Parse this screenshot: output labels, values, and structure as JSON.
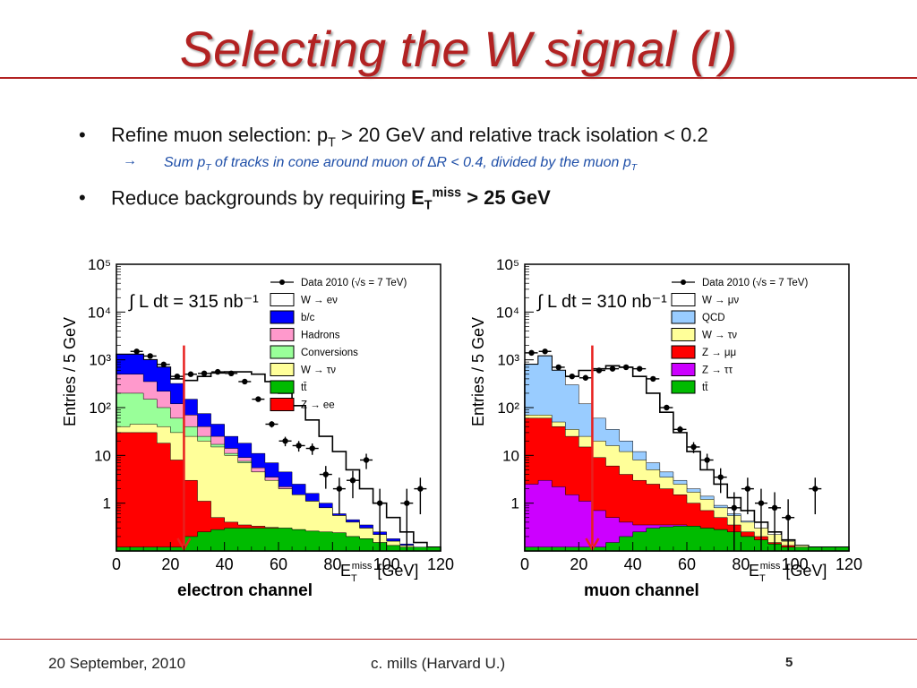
{
  "slide": {
    "title": "Selecting the W signal (I)",
    "bullet1": {
      "pre": "Refine muon selection: p",
      "sub": "T",
      "post": " > 20 GeV and relative track isolation < 0.2"
    },
    "subbullet": {
      "arrow": "→",
      "pre": "Sum p",
      "sub": "T",
      "mid": " of tracks in cone around muon of ",
      "delta": "∆",
      "post": "R < 0.4, divided by the muon p",
      "sub2": "T"
    },
    "bullet2": {
      "pre": "Reduce backgrounds by requiring ",
      "bold_e": "E",
      "bold_sub": "T",
      "bold_sup": "miss",
      "bold_post": " > 25 GeV"
    },
    "caption_electron": "electron channel",
    "caption_muon": "muon channel",
    "footer": {
      "date": "20 September, 2010",
      "author": "c. mills (Harvard U.)",
      "page": "5"
    }
  },
  "colors": {
    "title": "#b22222",
    "cut_line": "#e8201e",
    "blue": "#0000ff",
    "pink": "#ff99cc",
    "green_conv": "#99ff99",
    "yellow": "#ffff99",
    "ttbar": "#00bb00",
    "red": "#ff0000",
    "qcd": "#99ccff",
    "purple": "#cc00ff"
  },
  "chart_data": [
    {
      "type": "histogram",
      "ylabel": "Entries / 5 GeV",
      "xlabel": "E_T^miss [GeV]",
      "xlabel_parts": {
        "e": "E",
        "sub": "T",
        "sup": "miss",
        "unit": "[GeV]"
      },
      "xlim": [
        0,
        120
      ],
      "ylim": [
        0.1,
        100000
      ],
      "yscale": "log",
      "xticks": [
        "0",
        "20",
        "40",
        "60",
        "80",
        "100",
        "120"
      ],
      "yticks": [
        {
          "v": 1,
          "t": "1"
        },
        {
          "v": 10,
          "t": "10"
        },
        {
          "v": 100,
          "t": "10²"
        },
        {
          "v": 1000,
          "t": "10³"
        },
        {
          "v": 10000,
          "t": "10⁴"
        },
        {
          "v": 100000,
          "t": "10⁵"
        }
      ],
      "lumi_label": "∫ L dt = 315 nb⁻¹",
      "cut_at": 25,
      "legend": [
        {
          "label": "Data 2010 (√s = 7 TeV)",
          "style": "data"
        },
        {
          "label": "W → eν",
          "color": "#ffffff"
        },
        {
          "label": "b/c",
          "color": "#0000ff"
        },
        {
          "label": "Hadrons",
          "color": "#ff99cc"
        },
        {
          "label": "Conversions",
          "color": "#99ff99"
        },
        {
          "label": "W → τν",
          "color": "#ffff99"
        },
        {
          "label": "tt̄",
          "color": "#00bb00"
        },
        {
          "label": "Z → ee",
          "color": "#ff0000"
        }
      ],
      "stack_order": [
        "tt̄",
        "Z → ee",
        "W → τν",
        "Conversions",
        "Hadrons",
        "b/c",
        "W → eν"
      ],
      "stack_colors": [
        "#00bb00",
        "#ff0000",
        "#ffff99",
        "#99ff99",
        "#ff99cc",
        "#0000ff",
        "#ffffff"
      ],
      "cumulative": [
        [
          0.12,
          0.12,
          0.12,
          0.12,
          0.12,
          0.2,
          0.25,
          0.28,
          0.3,
          0.3,
          0.3,
          0.3,
          0.3,
          0.28,
          0.26,
          0.25,
          0.24,
          0.2,
          0.18,
          0.15,
          0.13,
          0.12,
          0.12,
          0.12
        ],
        [
          30,
          30,
          30,
          18,
          8,
          3,
          1.1,
          0.5,
          0.4,
          0.35,
          0.33,
          0.31,
          0.3,
          0.28,
          0.26,
          0.25,
          0.24,
          0.2,
          0.18,
          0.15,
          0.13,
          0.12,
          0.12,
          0.12
        ],
        [
          40,
          45,
          45,
          40,
          30,
          25,
          20,
          15,
          10,
          7,
          4.5,
          3,
          2,
          1.5,
          1.1,
          0.8,
          0.55,
          0.4,
          0.3,
          0.22,
          0.16,
          0.13,
          0.12,
          0.12
        ],
        [
          200,
          200,
          150,
          100,
          60,
          40,
          25,
          17,
          11,
          7.5,
          4.5,
          3,
          2,
          1.5,
          1.1,
          0.8,
          0.55,
          0.4,
          0.3,
          0.22,
          0.16,
          0.13,
          0.12,
          0.12
        ],
        [
          500,
          500,
          350,
          220,
          120,
          70,
          40,
          25,
          14,
          9,
          5.5,
          3.5,
          2.2,
          1.5,
          1.1,
          0.8,
          0.55,
          0.4,
          0.3,
          0.22,
          0.16,
          0.13,
          0.12,
          0.12
        ],
        [
          1300,
          1300,
          1000,
          700,
          320,
          150,
          75,
          45,
          25,
          18,
          11,
          7,
          4.5,
          2.5,
          1.6,
          1,
          0.6,
          0.45,
          0.35,
          0.25,
          0.18,
          0.14,
          0.12,
          0.12
        ],
        [
          1300,
          1300,
          1000,
          700,
          400,
          370,
          450,
          530,
          560,
          560,
          500,
          350,
          200,
          110,
          55,
          25,
          12,
          5,
          2,
          1,
          0.5,
          0.25,
          0.15,
          0.12
        ]
      ],
      "data_points": [
        {
          "x": 7.5,
          "y": 1500
        },
        {
          "x": 12.5,
          "y": 1200
        },
        {
          "x": 17.5,
          "y": 800
        },
        {
          "x": 22.5,
          "y": 450
        },
        {
          "x": 27.5,
          "y": 500
        },
        {
          "x": 32.5,
          "y": 520
        },
        {
          "x": 37.5,
          "y": 560
        },
        {
          "x": 42.5,
          "y": 520
        },
        {
          "x": 47.5,
          "y": 350
        },
        {
          "x": 52.5,
          "y": 150
        },
        {
          "x": 57.5,
          "y": 45
        },
        {
          "x": 62.5,
          "y": 20
        },
        {
          "x": 67.5,
          "y": 16
        },
        {
          "x": 72.5,
          "y": 14
        },
        {
          "x": 77.5,
          "y": 4
        },
        {
          "x": 82.5,
          "y": 2
        },
        {
          "x": 87.5,
          "y": 3
        },
        {
          "x": 92.5,
          "y": 8
        },
        {
          "x": 97.5,
          "y": 1
        },
        {
          "x": 107.5,
          "y": 1
        },
        {
          "x": 112.5,
          "y": 2
        }
      ]
    },
    {
      "type": "histogram",
      "ylabel": "Entries / 5 GeV",
      "xlabel": "E_T^miss [GeV]",
      "xlabel_parts": {
        "e": "E",
        "sub": "T",
        "sup": "miss",
        "unit": "[GeV]"
      },
      "xlim": [
        0,
        120
      ],
      "ylim": [
        0.1,
        100000
      ],
      "yscale": "log",
      "xticks": [
        "0",
        "20",
        "40",
        "60",
        "80",
        "100",
        "120"
      ],
      "yticks": [
        {
          "v": 1,
          "t": "1"
        },
        {
          "v": 10,
          "t": "10"
        },
        {
          "v": 100,
          "t": "10²"
        },
        {
          "v": 1000,
          "t": "10³"
        },
        {
          "v": 10000,
          "t": "10⁴"
        },
        {
          "v": 100000,
          "t": "10⁵"
        }
      ],
      "lumi_label": "∫ L dt = 310 nb⁻¹",
      "cut_at": 25,
      "legend": [
        {
          "label": "Data 2010 (√s = 7 TeV)",
          "style": "data"
        },
        {
          "label": "W → μν",
          "color": "#ffffff"
        },
        {
          "label": "QCD",
          "color": "#99ccff"
        },
        {
          "label": "W → τν",
          "color": "#ffff99"
        },
        {
          "label": "Z → μμ",
          "color": "#ff0000"
        },
        {
          "label": "Z → ττ",
          "color": "#cc00ff"
        },
        {
          "label": "tt̄",
          "color": "#00bb00"
        }
      ],
      "stack_order": [
        "tt̄",
        "Z → ττ",
        "Z → μμ",
        "W → τν",
        "QCD",
        "W → μν"
      ],
      "stack_colors": [
        "#00bb00",
        "#cc00ff",
        "#ff0000",
        "#ffff99",
        "#99ccff",
        "#ffffff"
      ],
      "cumulative": [
        [
          0.12,
          0.12,
          0.12,
          0.12,
          0.12,
          0.12,
          0.15,
          0.2,
          0.25,
          0.3,
          0.32,
          0.33,
          0.33,
          0.3,
          0.28,
          0.25,
          0.2,
          0.17,
          0.14,
          0.12,
          0.12,
          0.12,
          0.12,
          0.12
        ],
        [
          2.5,
          3,
          2.2,
          1.5,
          1.1,
          0.7,
          0.5,
          0.4,
          0.35,
          0.35,
          0.35,
          0.35,
          0.33,
          0.3,
          0.28,
          0.25,
          0.2,
          0.17,
          0.14,
          0.12,
          0.12,
          0.12,
          0.12,
          0.12
        ],
        [
          60,
          60,
          40,
          25,
          15,
          9,
          6,
          4,
          3,
          2.5,
          2,
          1.5,
          1,
          0.7,
          0.5,
          0.35,
          0.25,
          0.2,
          0.15,
          0.13,
          0.12,
          0.12,
          0.12,
          0.12
        ],
        [
          70,
          70,
          50,
          35,
          25,
          20,
          16,
          12,
          8,
          5,
          3.5,
          2.5,
          1.7,
          1.2,
          0.8,
          0.55,
          0.4,
          0.3,
          0.22,
          0.16,
          0.13,
          0.12,
          0.12,
          0.12
        ],
        [
          800,
          1200,
          600,
          300,
          120,
          60,
          35,
          20,
          12,
          7,
          4.5,
          3,
          2,
          1.4,
          0.9,
          0.6,
          0.42,
          0.3,
          0.22,
          0.16,
          0.13,
          0.12,
          0.12,
          0.12
        ],
        [
          800,
          1200,
          600,
          450,
          600,
          650,
          750,
          700,
          450,
          200,
          80,
          30,
          12,
          5,
          2.5,
          1.3,
          0.7,
          0.4,
          0.25,
          0.17,
          0.13,
          0.12,
          0.12,
          0.12
        ]
      ],
      "data_points": [
        {
          "x": 2.5,
          "y": 1400
        },
        {
          "x": 7.5,
          "y": 1500
        },
        {
          "x": 12.5,
          "y": 700
        },
        {
          "x": 17.5,
          "y": 450
        },
        {
          "x": 22.5,
          "y": 420
        },
        {
          "x": 27.5,
          "y": 600
        },
        {
          "x": 32.5,
          "y": 650
        },
        {
          "x": 37.5,
          "y": 700
        },
        {
          "x": 42.5,
          "y": 650
        },
        {
          "x": 47.5,
          "y": 400
        },
        {
          "x": 52.5,
          "y": 100
        },
        {
          "x": 57.5,
          "y": 35
        },
        {
          "x": 62.5,
          "y": 15
        },
        {
          "x": 67.5,
          "y": 8
        },
        {
          "x": 72.5,
          "y": 3.5
        },
        {
          "x": 77.5,
          "y": 0.8
        },
        {
          "x": 82.5,
          "y": 2
        },
        {
          "x": 87.5,
          "y": 1
        },
        {
          "x": 92.5,
          "y": 0.8
        },
        {
          "x": 97.5,
          "y": 0.5
        },
        {
          "x": 107.5,
          "y": 2
        }
      ]
    }
  ]
}
